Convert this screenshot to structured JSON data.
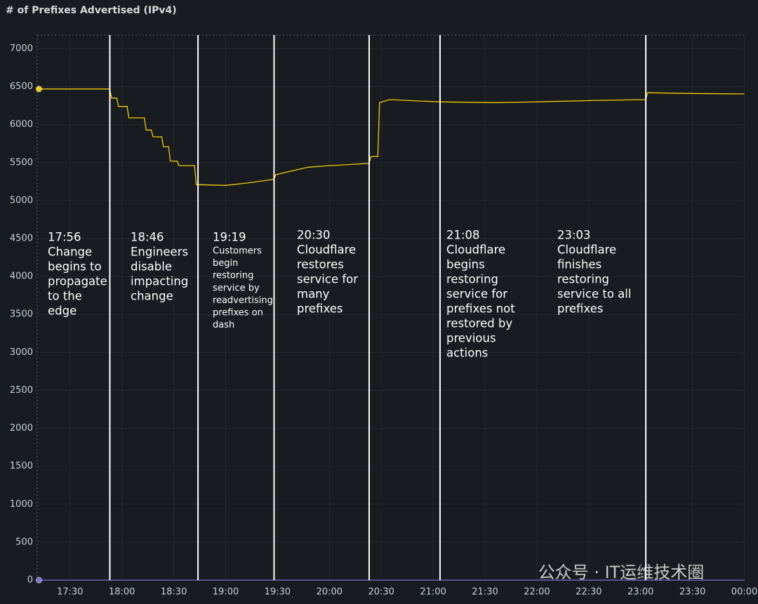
{
  "chart_data": {
    "type": "line",
    "title": "# of Prefixes Advertised (IPv4)",
    "x": [
      "17:12",
      "17:53",
      "17:54",
      "17:57",
      "17:58",
      "18:03",
      "18:04",
      "18:13",
      "18:14",
      "18:17",
      "18:18",
      "18:23",
      "18:24",
      "18:27",
      "18:28",
      "18:32",
      "18:33",
      "18:42",
      "18:43",
      "19:00",
      "19:12",
      "19:28",
      "19:29",
      "19:40",
      "19:48",
      "20:00",
      "20:12",
      "20:23",
      "20:24",
      "20:28",
      "20:29",
      "20:35",
      "20:53",
      "21:04",
      "21:34",
      "22:00",
      "22:35",
      "23:03",
      "23:04",
      "23:30",
      "00:00"
    ],
    "series": [
      {
        "color": "#f2cc0c",
        "values": [
          6470,
          6470,
          6350,
          6350,
          6240,
          6240,
          6090,
          6090,
          5930,
          5930,
          5840,
          5840,
          5710,
          5710,
          5520,
          5520,
          5460,
          5460,
          5210,
          5200,
          5230,
          5280,
          5340,
          5400,
          5440,
          5460,
          5475,
          5490,
          5580,
          5580,
          6290,
          6330,
          6310,
          6300,
          6290,
          6300,
          6320,
          6330,
          6420,
          6410,
          6405
        ]
      },
      {
        "color": "#7b6fd6",
        "values": [
          0,
          0,
          0,
          0,
          0,
          0,
          0,
          0,
          0,
          0,
          0,
          0,
          0,
          0,
          0,
          0,
          0,
          0,
          0,
          0,
          0,
          0,
          0,
          0,
          0,
          0,
          0,
          0,
          0,
          0,
          0,
          0,
          0,
          0,
          0,
          0,
          0,
          0,
          0,
          0,
          0
        ]
      }
    ],
    "xlim": [
      "17:11",
      "00:01"
    ],
    "xticks": [
      "17:30",
      "18:00",
      "18:30",
      "19:00",
      "19:30",
      "20:00",
      "20:30",
      "21:00",
      "21:30",
      "22:00",
      "22:30",
      "23:00",
      "23:30",
      "00:00"
    ],
    "ylim": [
      0,
      7180
    ],
    "yticks": [
      0,
      500,
      1000,
      1500,
      2000,
      2500,
      3000,
      3500,
      4000,
      4500,
      5000,
      5500,
      6000,
      6500,
      7000
    ],
    "grid": true,
    "event_lines": [
      "17:53",
      "18:44",
      "19:28",
      "20:23",
      "21:04",
      "23:03"
    ],
    "annotations": [
      {
        "time": "17:56",
        "lines": [
          "Change",
          "begins to",
          "propagate",
          "to the",
          "edge"
        ]
      },
      {
        "time": "18:46",
        "lines": [
          "Engineers",
          "disable",
          "impacting",
          "change"
        ]
      },
      {
        "time": "19:19",
        "lines": [
          "Customers",
          "begin",
          "restoring",
          "service by",
          "readvertising",
          "prefixes on",
          "dash"
        ]
      },
      {
        "time": "20:30",
        "lines": [
          "Cloudflare",
          "restores",
          "service for",
          "many",
          "prefixes"
        ]
      },
      {
        "time": "21:08",
        "lines": [
          "Cloudflare",
          "begins",
          "restoring",
          "service for",
          "prefixes not",
          "restored by",
          "previous",
          "actions"
        ]
      },
      {
        "time": "23:03",
        "lines": [
          "Cloudflare",
          "finishes",
          "restoring",
          "service to all",
          "prefixes"
        ]
      }
    ],
    "watermark": "公众号 · IT运维技术圈"
  }
}
